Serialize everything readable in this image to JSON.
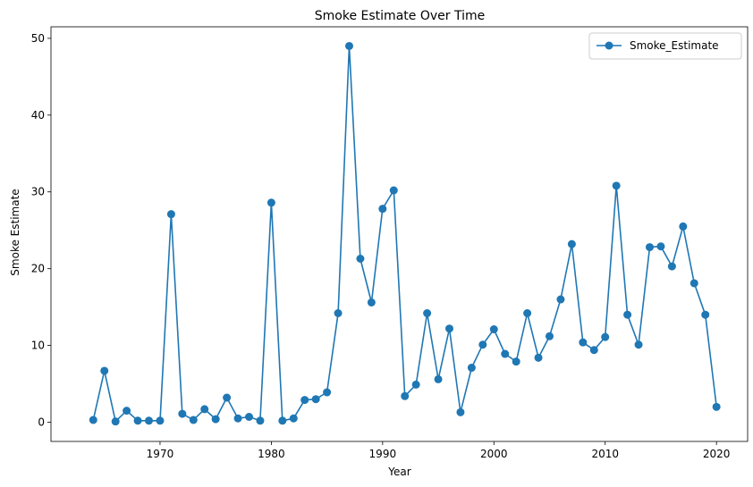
{
  "chart_data": {
    "type": "line",
    "title": "Smoke Estimate Over Time",
    "xlabel": "Year",
    "ylabel": "Smoke Estimate",
    "xlim": [
      1960.2,
      2022.8
    ],
    "ylim": [
      -2.5,
      51.5
    ],
    "xticks": [
      1970,
      1980,
      1990,
      2000,
      2010,
      2020
    ],
    "yticks": [
      0,
      10,
      20,
      30,
      40,
      50
    ],
    "grid": false,
    "legend_position": "top-right",
    "series": [
      {
        "name": "Smoke_Estimate",
        "color": "#1f77b4",
        "marker": "circle",
        "x": [
          1964,
          1965,
          1966,
          1967,
          1968,
          1969,
          1970,
          1971,
          1972,
          1973,
          1974,
          1975,
          1976,
          1977,
          1978,
          1979,
          1980,
          1981,
          1982,
          1983,
          1984,
          1985,
          1986,
          1987,
          1988,
          1989,
          1990,
          1991,
          1992,
          1993,
          1994,
          1995,
          1996,
          1997,
          1998,
          1999,
          2000,
          2001,
          2002,
          2003,
          2004,
          2005,
          2006,
          2007,
          2008,
          2009,
          2010,
          2011,
          2012,
          2013,
          2014,
          2015,
          2016,
          2017,
          2018,
          2019,
          2020
        ],
        "values": [
          0.3,
          6.7,
          0.1,
          1.5,
          0.2,
          0.2,
          0.2,
          27.1,
          1.1,
          0.3,
          1.7,
          0.4,
          3.2,
          0.5,
          0.7,
          0.2,
          28.6,
          0.2,
          0.5,
          2.9,
          3.0,
          3.9,
          14.2,
          49.0,
          21.3,
          15.6,
          27.8,
          30.2,
          3.4,
          4.9,
          14.2,
          5.6,
          12.2,
          1.3,
          7.1,
          10.1,
          12.1,
          8.9,
          7.9,
          14.2,
          8.4,
          11.2,
          16.0,
          23.2,
          10.4,
          9.4,
          11.1,
          30.8,
          14.0,
          10.1,
          22.8,
          22.9,
          20.3,
          25.5,
          18.1,
          14.0,
          2.0
        ]
      }
    ]
  }
}
